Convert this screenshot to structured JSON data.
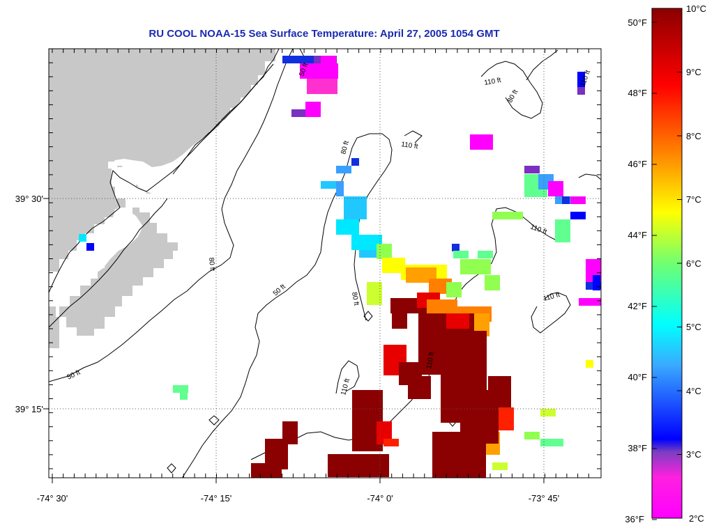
{
  "title": "RU COOL  NOAA-15  Sea Surface Temperature:  April 27, 2005 1054 GMT",
  "lon_ticks": [
    "-74° 30'",
    "-74° 15'",
    "-74° 0'",
    "-73° 45'"
  ],
  "lat_ticks": [
    "39° 30'",
    "39° 15'"
  ],
  "contour_labels": [
    "50 ft",
    "80 ft",
    "110 ft",
    "110 ft",
    "80 ft",
    "110 ft",
    "80 ft",
    "50 ft",
    "110 ft",
    "110 ft",
    "110 ft",
    "80 ft",
    "50 ft",
    "110 ft"
  ],
  "colorbar": {
    "fahrenheit": [
      "50°F",
      "48°F",
      "46°F",
      "44°F",
      "42°F",
      "40°F",
      "38°F",
      "36°F"
    ],
    "celsius": [
      "10°C",
      "9°C",
      "8°C",
      "7°C",
      "6°C",
      "5°C",
      "4°C",
      "3°C",
      "2°C"
    ],
    "colors": [
      "#8b0000",
      "#ff0000",
      "#ff8000",
      "#ffff00",
      "#80ff40",
      "#00ffff",
      "#0000ff",
      "#ff00ff"
    ]
  },
  "colors": {
    "land": "#c8c8c8",
    "title": "#1a2bb0"
  }
}
